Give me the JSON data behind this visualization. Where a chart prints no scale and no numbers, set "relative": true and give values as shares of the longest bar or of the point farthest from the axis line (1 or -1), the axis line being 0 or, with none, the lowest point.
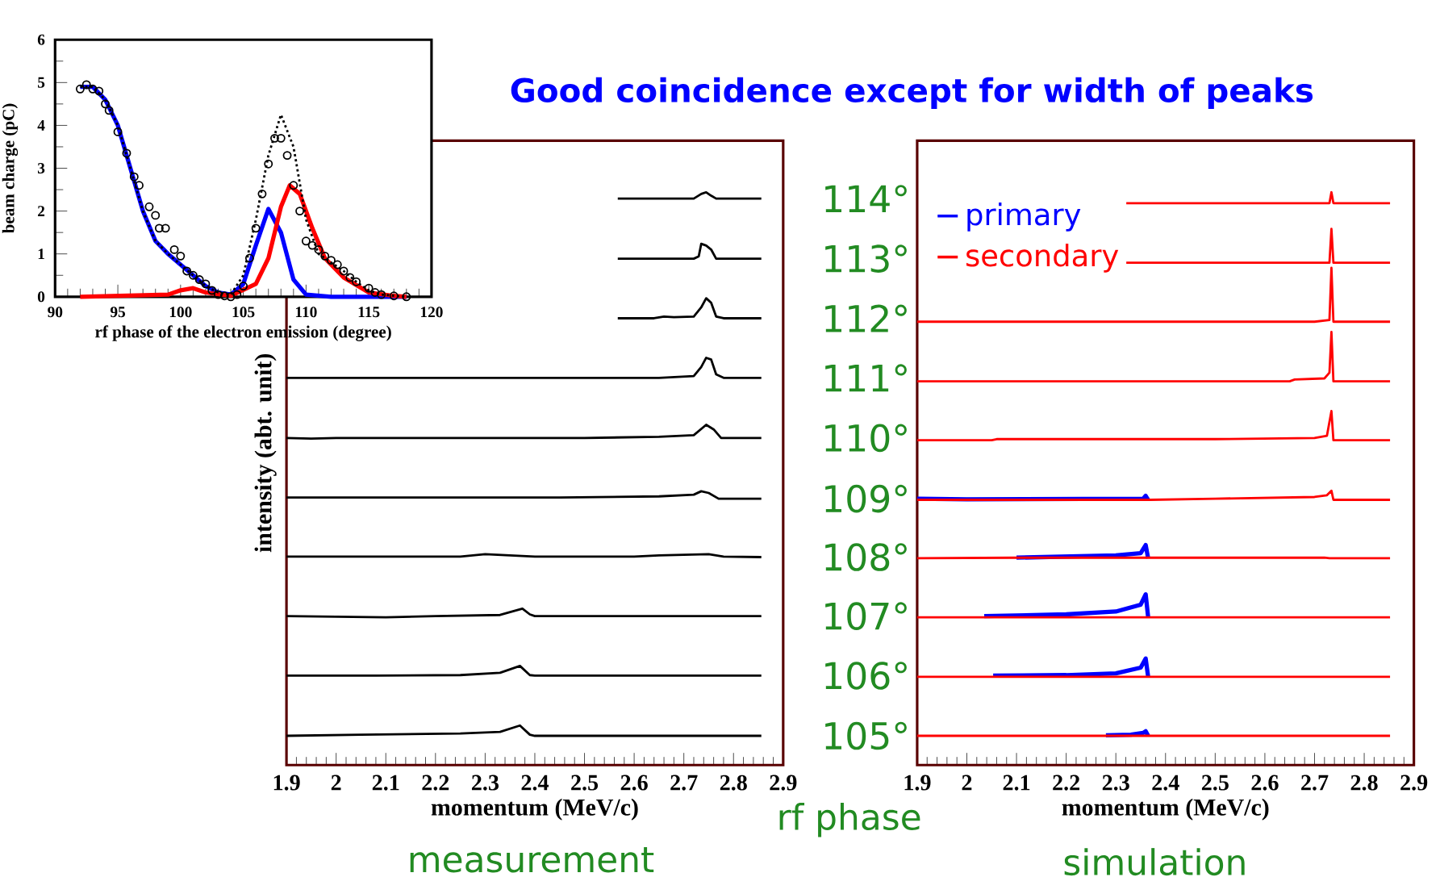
{
  "chart_data": [
    {
      "type": "line",
      "xlabel": "rf phase of the electron emission (degree)",
      "ylabel": "beam charge (pC)",
      "xlim": [
        90,
        120
      ],
      "ylim": [
        0,
        6
      ],
      "xticks": [
        90,
        95,
        100,
        105,
        110,
        115,
        120
      ],
      "yticks": [
        0,
        1,
        2,
        3,
        4,
        5,
        6
      ],
      "series": [
        {
          "color": "#0000ff",
          "x": [
            92,
            93,
            94,
            95,
            96,
            97,
            98,
            99,
            100,
            101,
            102,
            103,
            104,
            105,
            106,
            107,
            108,
            109,
            110,
            112,
            118
          ],
          "values": [
            4.9,
            4.9,
            4.6,
            4.0,
            3.0,
            2.0,
            1.3,
            1.0,
            0.75,
            0.5,
            0.25,
            0.1,
            0.05,
            0.3,
            1.2,
            2.05,
            1.5,
            0.4,
            0.05,
            0,
            0
          ]
        },
        {
          "color": "#ff0000",
          "x": [
            92,
            99,
            100,
            101,
            102,
            104,
            106,
            107,
            108,
            108.7,
            109.5,
            110.5,
            111.5,
            113,
            115,
            117,
            118
          ],
          "values": [
            0,
            0.05,
            0.15,
            0.2,
            0.1,
            0.02,
            0.3,
            0.9,
            2.1,
            2.6,
            2.4,
            1.6,
            0.9,
            0.45,
            0.1,
            0.02,
            0
          ]
        },
        {
          "color": "#000000",
          "line_style": "dotted",
          "x": [
            92,
            93,
            94,
            95,
            96,
            97,
            98,
            99,
            100,
            101,
            102,
            103,
            104,
            105,
            106,
            107,
            108,
            109,
            110,
            111,
            112,
            113,
            114,
            115,
            116,
            118
          ],
          "values": [
            4.9,
            4.9,
            4.6,
            4.0,
            3.0,
            2.0,
            1.3,
            1.0,
            0.75,
            0.5,
            0.25,
            0.1,
            0.05,
            0.5,
            1.8,
            3.3,
            4.25,
            3.5,
            1.8,
            1.0,
            0.8,
            0.6,
            0.35,
            0.15,
            0.05,
            0
          ]
        },
        {
          "type": "scatter",
          "marker": "circle",
          "color": "#000000",
          "x": [
            92,
            92.5,
            93,
            93.5,
            94,
            94.3,
            95,
            95.7,
            96.3,
            96.7,
            97.5,
            98,
            98.3,
            98.8,
            99.5,
            100,
            100.5,
            101,
            101.5,
            102,
            102.5,
            103,
            103.5,
            104,
            104.5,
            105,
            105.5,
            106,
            106.5,
            107,
            107.5,
            108,
            108.5,
            109,
            109.5,
            110,
            110.5,
            111,
            111.5,
            112,
            112.5,
            113,
            113.5,
            114,
            115,
            115.5,
            116,
            117,
            118
          ],
          "values": [
            4.85,
            4.95,
            4.85,
            4.8,
            4.5,
            4.35,
            3.85,
            3.35,
            2.8,
            2.6,
            2.1,
            1.9,
            1.6,
            1.6,
            1.1,
            0.95,
            0.6,
            0.5,
            0.4,
            0.3,
            0.15,
            0.05,
            0.02,
            0.0,
            0.05,
            0.25,
            0.9,
            1.6,
            2.4,
            3.1,
            3.7,
            3.7,
            3.3,
            2.6,
            2.0,
            1.3,
            1.2,
            1.1,
            0.95,
            0.85,
            0.75,
            0.6,
            0.45,
            0.35,
            0.2,
            0.1,
            0.05,
            0.02,
            0
          ]
        }
      ]
    },
    {
      "type": "line",
      "relative": true,
      "title": "Good coincidence except for width of peaks",
      "xlabel": "momentum (MeV/c)",
      "ylabel": "intensity (abt. unit)",
      "xlim": [
        1.9,
        2.9
      ],
      "xticks": [
        1.9,
        2,
        2.1,
        2.2,
        2.3,
        2.4,
        2.5,
        2.6,
        2.7,
        2.8,
        2.9
      ],
      "annotations": [
        "rf phase",
        "measurement"
      ],
      "series": [
        {
          "name": "114°",
          "color": "#000000",
          "x": [
            2.567,
            2.72,
            2.735,
            2.745,
            2.755,
            2.765,
            2.856
          ],
          "values": [
            0.989,
            0.989,
            0.997,
            1.0,
            0.994,
            0.989,
            0.989
          ]
        },
        {
          "name": "113°",
          "color": "#000000",
          "x": [
            2.567,
            2.72,
            2.73,
            2.735,
            2.745,
            2.755,
            2.765,
            2.856
          ],
          "values": [
            0.884,
            0.884,
            0.888,
            0.91,
            0.907,
            0.9,
            0.884,
            0.884
          ]
        },
        {
          "name": "112°",
          "color": "#000000",
          "x": [
            2.567,
            2.64,
            2.66,
            2.68,
            2.72,
            2.735,
            2.745,
            2.755,
            2.765,
            2.78,
            2.856
          ],
          "values": [
            0.78,
            0.78,
            0.783,
            0.782,
            0.783,
            0.799,
            0.815,
            0.807,
            0.783,
            0.78,
            0.78
          ]
        },
        {
          "name": "111°",
          "color": "#000000",
          "x": [
            1.9,
            2.65,
            2.72,
            2.735,
            2.745,
            2.755,
            2.765,
            2.78,
            2.856
          ],
          "values": [
            0.676,
            0.676,
            0.679,
            0.695,
            0.711,
            0.708,
            0.682,
            0.676,
            0.676
          ]
        },
        {
          "name": "110°",
          "color": "#000000",
          "x": [
            1.9,
            1.95,
            2.0,
            2.5,
            2.65,
            2.72,
            2.745,
            2.76,
            2.775,
            2.856
          ],
          "values": [
            0.571,
            0.57,
            0.571,
            0.571,
            0.573,
            0.576,
            0.594,
            0.586,
            0.571,
            0.571
          ]
        },
        {
          "name": "109°",
          "color": "#000000",
          "x": [
            1.9,
            1.95,
            2.3,
            2.45,
            2.65,
            2.72,
            2.735,
            2.75,
            2.77,
            2.856
          ],
          "values": [
            0.467,
            0.467,
            0.467,
            0.467,
            0.469,
            0.472,
            0.478,
            0.475,
            0.465,
            0.465
          ]
        },
        {
          "name": "108°",
          "color": "#000000",
          "x": [
            1.9,
            2.25,
            2.3,
            2.4,
            2.6,
            2.65,
            2.75,
            2.78,
            2.856
          ],
          "values": [
            0.364,
            0.364,
            0.368,
            0.364,
            0.364,
            0.366,
            0.368,
            0.364,
            0.363
          ]
        },
        {
          "name": "107°",
          "color": "#000000",
          "x": [
            1.9,
            2.1,
            2.2,
            2.33,
            2.375,
            2.39,
            2.4,
            2.856
          ],
          "values": [
            0.26,
            0.258,
            0.26,
            0.262,
            0.273,
            0.263,
            0.26,
            0.26
          ]
        },
        {
          "name": "106°",
          "color": "#000000",
          "x": [
            1.9,
            2.08,
            2.25,
            2.33,
            2.37,
            2.39,
            2.4,
            2.856
          ],
          "values": [
            0.156,
            0.156,
            0.157,
            0.161,
            0.173,
            0.157,
            0.156,
            0.156
          ]
        },
        {
          "name": "105°",
          "color": "#000000",
          "x": [
            1.9,
            2.05,
            2.25,
            2.33,
            2.37,
            2.39,
            2.4,
            2.856
          ],
          "values": [
            0.051,
            0.053,
            0.055,
            0.058,
            0.069,
            0.053,
            0.051,
            0.051
          ]
        }
      ]
    },
    {
      "type": "line",
      "relative": true,
      "xlabel": "momentum (MeV/c)",
      "xlim": [
        1.9,
        2.9
      ],
      "xticks": [
        1.9,
        2,
        2.1,
        2.2,
        2.3,
        2.4,
        2.5,
        2.6,
        2.7,
        2.8,
        2.9
      ],
      "legend": "top left",
      "annotations": [
        "simulation"
      ],
      "series": [
        {
          "name": "primary",
          "color": "#0000ff",
          "x": [
            1.9,
            2.0,
            2.355,
            2.36,
            2.365
          ],
          "values": [
            0.465,
            0.464,
            0.465,
            0.47,
            0.463
          ]
        },
        {
          "color": "#0000ff",
          "x": [
            2.1,
            2.3,
            2.35,
            2.36,
            2.365
          ],
          "values": [
            0.362,
            0.366,
            0.37,
            0.384,
            0.361
          ]
        },
        {
          "color": "#0000ff",
          "x": [
            2.035,
            2.2,
            2.3,
            2.35,
            2.36,
            2.365
          ],
          "values": [
            0.26,
            0.263,
            0.268,
            0.28,
            0.298,
            0.258
          ]
        },
        {
          "color": "#0000ff",
          "x": [
            2.053,
            2.2,
            2.3,
            2.35,
            2.36,
            2.365
          ],
          "values": [
            0.156,
            0.157,
            0.16,
            0.17,
            0.186,
            0.154
          ]
        },
        {
          "color": "#0000ff",
          "x": [
            2.28,
            2.33,
            2.355,
            2.36,
            2.365
          ],
          "values": [
            0.052,
            0.053,
            0.056,
            0.059,
            0.051
          ]
        },
        {
          "name": "secondary",
          "color": "#ff0000",
          "x": [
            2.321,
            2.73,
            2.734,
            2.738,
            2.852
          ],
          "values": [
            0.981,
            0.981,
            1.0,
            0.981,
            0.981
          ]
        },
        {
          "color": "#ff0000",
          "x": [
            2.321,
            2.73,
            2.734,
            2.738,
            2.852
          ],
          "values": [
            0.877,
            0.877,
            0.936,
            0.877,
            0.877
          ]
        },
        {
          "color": "#ff0000",
          "x": [
            1.9,
            2.7,
            2.73,
            2.734,
            2.738,
            2.852
          ],
          "values": [
            0.774,
            0.774,
            0.777,
            0.868,
            0.774,
            0.774
          ]
        },
        {
          "color": "#ff0000",
          "x": [
            1.9,
            2.65,
            2.66,
            2.72,
            2.73,
            2.734,
            2.738,
            2.852
          ],
          "values": [
            0.67,
            0.67,
            0.673,
            0.675,
            0.685,
            0.756,
            0.67,
            0.67
          ]
        },
        {
          "color": "#ff0000",
          "x": [
            1.9,
            2.05,
            2.06,
            2.5,
            2.7,
            2.725,
            2.734,
            2.738,
            2.852
          ],
          "values": [
            0.567,
            0.567,
            0.569,
            0.569,
            0.571,
            0.575,
            0.618,
            0.567,
            0.567
          ]
        },
        {
          "color": "#ff0000",
          "x": [
            1.9,
            2.36,
            2.37,
            2.5,
            2.7,
            2.725,
            2.734,
            2.738,
            2.852
          ],
          "values": [
            0.463,
            0.463,
            0.463,
            0.465,
            0.468,
            0.471,
            0.479,
            0.463,
            0.463
          ]
        },
        {
          "color": "#ff0000",
          "x": [
            1.9,
            2.1,
            2.72,
            2.73,
            2.852
          ],
          "values": [
            0.361,
            0.362,
            0.362,
            0.361,
            0.361
          ]
        },
        {
          "color": "#ff0000",
          "x": [
            1.9,
            2.852
          ],
          "values": [
            0.258,
            0.258
          ]
        },
        {
          "color": "#ff0000",
          "x": [
            1.9,
            2.852
          ],
          "values": [
            0.154,
            0.154
          ]
        },
        {
          "color": "#ff0000",
          "x": [
            1.9,
            2.852
          ],
          "values": [
            0.051,
            0.051
          ]
        }
      ]
    }
  ]
}
